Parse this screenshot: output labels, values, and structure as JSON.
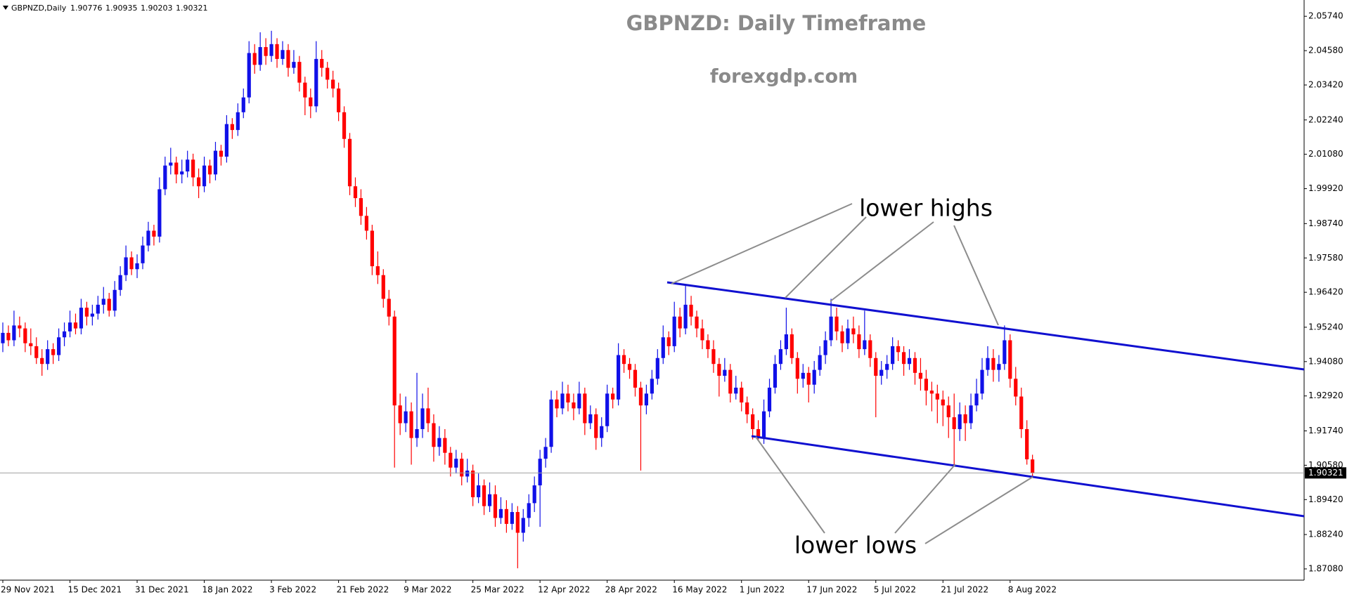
{
  "chart_data": {
    "type": "candlestick",
    "symbol": "GBPNZD,Daily",
    "title": "GBPNZD: Daily Timeframe",
    "subtitle": "forexgdp.com",
    "annotations": [
      "lower highs",
      "lower lows"
    ],
    "up_color": "#1010e8",
    "down_color": "#ff0000",
    "ylim": [
      1.867,
      2.0629
    ],
    "yticks": [
      {
        "value": 2.0574,
        "label": "2.05740"
      },
      {
        "value": 2.0458,
        "label": "2.04580"
      },
      {
        "value": 2.0342,
        "label": "2.03420"
      },
      {
        "value": 2.0224,
        "label": "2.02240"
      },
      {
        "value": 2.0108,
        "label": "2.01080"
      },
      {
        "value": 1.9992,
        "label": "1.99920"
      },
      {
        "value": 1.9874,
        "label": "1.98740"
      },
      {
        "value": 1.9758,
        "label": "1.97580"
      },
      {
        "value": 1.9642,
        "label": "1.96420"
      },
      {
        "value": 1.9524,
        "label": "1.95240"
      },
      {
        "value": 1.9408,
        "label": "1.94080"
      },
      {
        "value": 1.9292,
        "label": "1.92920"
      },
      {
        "value": 1.9174,
        "label": "1.91740"
      },
      {
        "value": 1.9058,
        "label": "1.90580"
      },
      {
        "value": 1.8942,
        "label": "1.89420"
      },
      {
        "value": 1.8824,
        "label": "1.88240"
      },
      {
        "value": 1.8708,
        "label": "1.87080"
      }
    ],
    "categories": [
      "29 Nov 2021",
      null,
      null,
      null,
      null,
      null,
      null,
      null,
      null,
      null,
      null,
      null,
      "15 Dec 2021",
      null,
      null,
      null,
      null,
      null,
      null,
      null,
      null,
      null,
      null,
      null,
      "31 Dec 2021",
      null,
      null,
      null,
      null,
      null,
      null,
      null,
      null,
      null,
      null,
      null,
      "18 Jan 2022",
      null,
      null,
      null,
      null,
      null,
      null,
      null,
      null,
      null,
      null,
      null,
      "3 Feb 2022",
      null,
      null,
      null,
      null,
      null,
      null,
      null,
      null,
      null,
      null,
      null,
      "21 Feb 2022",
      null,
      null,
      null,
      null,
      null,
      null,
      null,
      null,
      null,
      null,
      null,
      "9 Mar 2022",
      null,
      null,
      null,
      null,
      null,
      null,
      null,
      null,
      null,
      null,
      null,
      "25 Mar 2022",
      null,
      null,
      null,
      null,
      null,
      null,
      null,
      null,
      null,
      null,
      null,
      "12 Apr 2022",
      null,
      null,
      null,
      null,
      null,
      null,
      null,
      null,
      null,
      null,
      null,
      "28 Apr 2022",
      null,
      null,
      null,
      null,
      null,
      null,
      null,
      null,
      null,
      null,
      null,
      "16 May 2022",
      null,
      null,
      null,
      null,
      null,
      null,
      null,
      null,
      null,
      null,
      null,
      "1 Jun 2022",
      null,
      null,
      null,
      null,
      null,
      null,
      null,
      null,
      null,
      null,
      null,
      "17 Jun 2022",
      null,
      null,
      null,
      null,
      null,
      null,
      null,
      null,
      null,
      null,
      null,
      "5 Jul 2022",
      null,
      null,
      null,
      null,
      null,
      null,
      null,
      null,
      null,
      null,
      null,
      "21 Jul 2022",
      null,
      null,
      null,
      null,
      null,
      null,
      null,
      null,
      null,
      null,
      null,
      "8 Aug 2022",
      null,
      null,
      null,
      null
    ],
    "ohlc": [
      [
        1.947,
        1.954,
        1.944,
        1.9505
      ],
      [
        1.9505,
        1.953,
        1.946,
        1.948
      ],
      [
        1.948,
        1.958,
        1.946,
        1.953
      ],
      [
        1.953,
        1.956,
        1.949,
        1.952
      ],
      [
        1.952,
        1.954,
        1.944,
        1.947
      ],
      [
        1.947,
        1.952,
        1.943,
        1.946
      ],
      [
        1.946,
        1.949,
        1.94,
        1.942
      ],
      [
        1.942,
        1.945,
        1.936,
        1.94
      ],
      [
        1.94,
        1.948,
        1.938,
        1.945
      ],
      [
        1.945,
        1.947,
        1.94,
        1.943
      ],
      [
        1.943,
        1.952,
        1.941,
        1.949
      ],
      [
        1.949,
        1.954,
        1.946,
        1.951
      ],
      [
        1.951,
        1.958,
        1.949,
        1.954
      ],
      [
        1.954,
        1.957,
        1.95,
        1.952
      ],
      [
        1.952,
        1.962,
        1.95,
        1.959
      ],
      [
        1.959,
        1.961,
        1.953,
        1.956
      ],
      [
        1.956,
        1.96,
        1.953,
        1.957
      ],
      [
        1.957,
        1.963,
        1.955,
        1.96
      ],
      [
        1.96,
        1.966,
        1.957,
        1.962
      ],
      [
        1.962,
        1.964,
        1.956,
        1.958
      ],
      [
        1.958,
        1.968,
        1.956,
        1.965
      ],
      [
        1.965,
        1.973,
        1.963,
        1.97
      ],
      [
        1.97,
        1.98,
        1.968,
        1.976
      ],
      [
        1.976,
        1.978,
        1.97,
        1.972
      ],
      [
        1.972,
        1.977,
        1.969,
        1.974
      ],
      [
        1.974,
        1.983,
        1.972,
        1.98
      ],
      [
        1.98,
        1.988,
        1.978,
        1.985
      ],
      [
        1.985,
        1.987,
        1.98,
        1.983
      ],
      [
        1.983,
        2.003,
        1.981,
        1.999
      ],
      [
        1.999,
        2.01,
        1.997,
        2.007
      ],
      [
        2.007,
        2.013,
        2.004,
        2.008
      ],
      [
        2.008,
        2.01,
        2.001,
        2.004
      ],
      [
        2.004,
        2.009,
        2.001,
        2.005
      ],
      [
        2.005,
        2.012,
        2.003,
        2.009
      ],
      [
        2.009,
        2.011,
        2.0,
        2.003
      ],
      [
        2.003,
        2.006,
        1.996,
        2.0
      ],
      [
        2.0,
        2.01,
        1.998,
        2.007
      ],
      [
        2.007,
        2.009,
        2.001,
        2.004
      ],
      [
        2.004,
        2.015,
        2.002,
        2.012
      ],
      [
        2.012,
        2.014,
        2.007,
        2.01
      ],
      [
        2.01,
        2.024,
        2.008,
        2.021
      ],
      [
        2.021,
        2.023,
        2.016,
        2.019
      ],
      [
        2.019,
        2.028,
        2.017,
        2.025
      ],
      [
        2.025,
        2.033,
        2.023,
        2.03
      ],
      [
        2.03,
        2.049,
        2.028,
        2.045
      ],
      [
        2.045,
        2.048,
        2.038,
        2.041
      ],
      [
        2.041,
        2.052,
        2.039,
        2.047
      ],
      [
        2.047,
        2.05,
        2.041,
        2.044
      ],
      [
        2.044,
        2.0525,
        2.042,
        2.048
      ],
      [
        2.048,
        2.05,
        2.04,
        2.043
      ],
      [
        2.043,
        2.049,
        2.041,
        2.046
      ],
      [
        2.046,
        2.048,
        2.037,
        2.04
      ],
      [
        2.04,
        2.046,
        2.038,
        2.042
      ],
      [
        2.042,
        2.044,
        2.032,
        2.035
      ],
      [
        2.035,
        2.037,
        2.024,
        2.03
      ],
      [
        2.03,
        2.033,
        2.023,
        2.027
      ],
      [
        2.027,
        2.049,
        2.025,
        2.043
      ],
      [
        2.043,
        2.046,
        2.037,
        2.04
      ],
      [
        2.04,
        2.042,
        2.033,
        2.036
      ],
      [
        2.036,
        2.039,
        2.03,
        2.033
      ],
      [
        2.033,
        2.035,
        2.022,
        2.025
      ],
      [
        2.025,
        2.027,
        2.013,
        2.016
      ],
      [
        2.016,
        2.018,
        1.997,
        2.0
      ],
      [
        2.0,
        2.003,
        1.993,
        1.996
      ],
      [
        1.996,
        1.999,
        1.987,
        1.99
      ],
      [
        1.99,
        1.993,
        1.982,
        1.985
      ],
      [
        1.985,
        1.987,
        1.97,
        1.973
      ],
      [
        1.973,
        1.978,
        1.967,
        1.97
      ],
      [
        1.97,
        1.972,
        1.959,
        1.962
      ],
      [
        1.962,
        1.965,
        1.953,
        1.956
      ],
      [
        1.956,
        1.958,
        1.905,
        1.926
      ],
      [
        1.926,
        1.93,
        1.916,
        1.92
      ],
      [
        1.92,
        1.929,
        1.917,
        1.924
      ],
      [
        1.924,
        1.927,
        1.906,
        1.915
      ],
      [
        1.915,
        1.937,
        1.912,
        1.918
      ],
      [
        1.918,
        1.93,
        1.915,
        1.925
      ],
      [
        1.925,
        1.932,
        1.917,
        1.92
      ],
      [
        1.92,
        1.923,
        1.907,
        1.912
      ],
      [
        1.912,
        1.919,
        1.909,
        1.915
      ],
      [
        1.915,
        1.918,
        1.906,
        1.91
      ],
      [
        1.91,
        1.912,
        1.902,
        1.905
      ],
      [
        1.905,
        1.911,
        1.903,
        1.908
      ],
      [
        1.908,
        1.91,
        1.899,
        1.902
      ],
      [
        1.902,
        1.908,
        1.9,
        1.904
      ],
      [
        1.904,
        1.906,
        1.892,
        1.895
      ],
      [
        1.895,
        1.903,
        1.893,
        1.899
      ],
      [
        1.899,
        1.901,
        1.889,
        1.892
      ],
      [
        1.892,
        1.9,
        1.89,
        1.896
      ],
      [
        1.896,
        1.899,
        1.885,
        1.888
      ],
      [
        1.888,
        1.895,
        1.886,
        1.891
      ],
      [
        1.891,
        1.894,
        1.883,
        1.886
      ],
      [
        1.886,
        1.893,
        1.884,
        1.89
      ],
      [
        1.89,
        1.892,
        1.871,
        1.883
      ],
      [
        1.883,
        1.891,
        1.88,
        1.888
      ],
      [
        1.888,
        1.896,
        1.885,
        1.893
      ],
      [
        1.893,
        1.902,
        1.89,
        1.899
      ],
      [
        1.899,
        1.911,
        1.885,
        1.908
      ],
      [
        1.908,
        1.915,
        1.905,
        1.912
      ],
      [
        1.912,
        1.931,
        1.91,
        1.928
      ],
      [
        1.928,
        1.931,
        1.922,
        1.925
      ],
      [
        1.925,
        1.934,
        1.923,
        1.93
      ],
      [
        1.93,
        1.933,
        1.924,
        1.927
      ],
      [
        1.927,
        1.93,
        1.921,
        1.925
      ],
      [
        1.925,
        1.934,
        1.923,
        1.93
      ],
      [
        1.93,
        1.932,
        1.916,
        1.92
      ],
      [
        1.92,
        1.926,
        1.918,
        1.923
      ],
      [
        1.923,
        1.925,
        1.911,
        1.915
      ],
      [
        1.915,
        1.922,
        1.912,
        1.919
      ],
      [
        1.919,
        1.933,
        1.917,
        1.93
      ],
      [
        1.93,
        1.932,
        1.925,
        1.928
      ],
      [
        1.928,
        1.947,
        1.926,
        1.943
      ],
      [
        1.943,
        1.945,
        1.937,
        1.94
      ],
      [
        1.94,
        1.942,
        1.935,
        1.938
      ],
      [
        1.938,
        1.94,
        1.929,
        1.932
      ],
      [
        1.932,
        1.934,
        1.904,
        1.926
      ],
      [
        1.926,
        1.933,
        1.923,
        1.93
      ],
      [
        1.93,
        1.938,
        1.928,
        1.935
      ],
      [
        1.935,
        1.945,
        1.933,
        1.942
      ],
      [
        1.942,
        1.953,
        1.94,
        1.949
      ],
      [
        1.949,
        1.951,
        1.943,
        1.946
      ],
      [
        1.946,
        1.961,
        1.944,
        1.956
      ],
      [
        1.956,
        1.959,
        1.949,
        1.952
      ],
      [
        1.952,
        1.9665,
        1.95,
        1.96
      ],
      [
        1.96,
        1.963,
        1.953,
        1.956
      ],
      [
        1.956,
        1.958,
        1.949,
        1.952
      ],
      [
        1.952,
        1.955,
        1.945,
        1.948
      ],
      [
        1.948,
        1.95,
        1.942,
        1.945
      ],
      [
        1.945,
        1.948,
        1.937,
        1.94
      ],
      [
        1.94,
        1.942,
        1.929,
        1.936
      ],
      [
        1.936,
        1.942,
        1.934,
        1.938
      ],
      [
        1.938,
        1.94,
        1.927,
        1.93
      ],
      [
        1.93,
        1.936,
        1.928,
        1.932
      ],
      [
        1.932,
        1.934,
        1.924,
        1.927
      ],
      [
        1.927,
        1.929,
        1.92,
        1.923
      ],
      [
        1.923,
        1.925,
        1.9145,
        1.918
      ],
      [
        1.918,
        1.921,
        1.914,
        1.915
      ],
      [
        1.915,
        1.928,
        1.913,
        1.924
      ],
      [
        1.924,
        1.935,
        1.922,
        1.932
      ],
      [
        1.932,
        1.943,
        1.93,
        1.94
      ],
      [
        1.94,
        1.948,
        1.938,
        1.945
      ],
      [
        1.945,
        1.959,
        1.943,
        1.95
      ],
      [
        1.95,
        1.952,
        1.94,
        1.942
      ],
      [
        1.942,
        1.944,
        1.93,
        1.935
      ],
      [
        1.935,
        1.94,
        1.932,
        1.937
      ],
      [
        1.937,
        1.939,
        1.927,
        1.933
      ],
      [
        1.933,
        1.941,
        1.93,
        1.938
      ],
      [
        1.938,
        1.946,
        1.936,
        1.943
      ],
      [
        1.943,
        1.951,
        1.94,
        1.948
      ],
      [
        1.948,
        1.962,
        1.946,
        1.956
      ],
      [
        1.956,
        1.959,
        1.948,
        1.951
      ],
      [
        1.951,
        1.953,
        1.944,
        1.947
      ],
      [
        1.947,
        1.955,
        1.945,
        1.952
      ],
      [
        1.952,
        1.956,
        1.947,
        1.95
      ],
      [
        1.95,
        1.953,
        1.942,
        1.945
      ],
      [
        1.945,
        1.958,
        1.943,
        1.948
      ],
      [
        1.948,
        1.95,
        1.939,
        1.942
      ],
      [
        1.942,
        1.944,
        1.922,
        1.936
      ],
      [
        1.936,
        1.941,
        1.933,
        1.938
      ],
      [
        1.938,
        1.943,
        1.935,
        1.94
      ],
      [
        1.94,
        1.949,
        1.938,
        1.946
      ],
      [
        1.946,
        1.948,
        1.941,
        1.944
      ],
      [
        1.944,
        1.946,
        1.936,
        1.94
      ],
      [
        1.94,
        1.945,
        1.938,
        1.942
      ],
      [
        1.942,
        1.944,
        1.933,
        1.937
      ],
      [
        1.937,
        1.942,
        1.931,
        1.935
      ],
      [
        1.935,
        1.938,
        1.926,
        1.931
      ],
      [
        1.931,
        1.934,
        1.924,
        1.93
      ],
      [
        1.93,
        1.933,
        1.92,
        1.928
      ],
      [
        1.928,
        1.931,
        1.919,
        1.926
      ],
      [
        1.926,
        1.929,
        1.915,
        1.922
      ],
      [
        1.922,
        1.93,
        1.906,
        1.918
      ],
      [
        1.918,
        1.927,
        1.914,
        1.923
      ],
      [
        1.923,
        1.926,
        1.914,
        1.92
      ],
      [
        1.92,
        1.93,
        1.918,
        1.926
      ],
      [
        1.926,
        1.935,
        1.924,
        1.93
      ],
      [
        1.93,
        1.942,
        1.928,
        1.938
      ],
      [
        1.938,
        1.946,
        1.936,
        1.942
      ],
      [
        1.942,
        1.945,
        1.934,
        1.938
      ],
      [
        1.938,
        1.943,
        1.934,
        1.94
      ],
      [
        1.94,
        1.953,
        1.938,
        1.948
      ],
      [
        1.948,
        1.95,
        1.932,
        1.935
      ],
      [
        1.935,
        1.939,
        1.926,
        1.929
      ],
      [
        1.929,
        1.932,
        1.915,
        1.918
      ],
      [
        1.918,
        1.921,
        1.906,
        1.9078
      ],
      [
        1.90776,
        1.90935,
        1.90203,
        1.90321
      ]
    ]
  }
}
